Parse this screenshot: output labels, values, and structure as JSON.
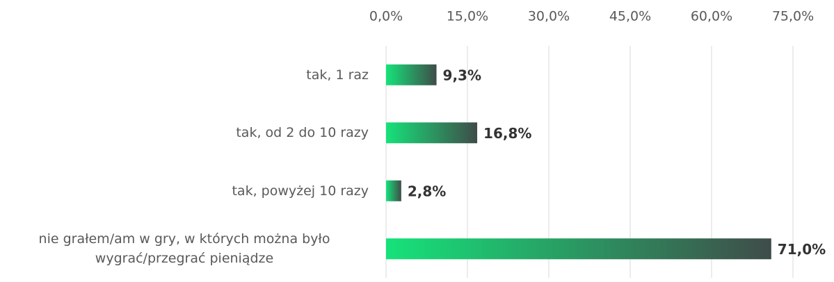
{
  "chart_data": {
    "type": "hbar",
    "categories": [
      "tak, 1 raz",
      "tak, od 2 do 10 razy",
      "tak, powyżej 10 razy",
      "nie grałem/am w gry, w których można było wygrać/przegrać pieniądze"
    ],
    "values": [
      9.3,
      16.8,
      2.8,
      71.0
    ],
    "value_labels": [
      "9,3%",
      "16,8%",
      "2,8%",
      "71,0%"
    ],
    "color": [
      "#16e27a",
      "#3f4c49"
    ],
    "xlim": [
      0,
      75
    ],
    "xticks": [
      {
        "value": 0,
        "label": "0,0%"
      },
      {
        "value": 15,
        "label": "15,0%"
      },
      {
        "value": 30,
        "label": "30,0%"
      },
      {
        "value": 45,
        "label": "45,0%"
      },
      {
        "value": 60,
        "label": "60,0%"
      },
      {
        "value": 75,
        "label": "75,0%"
      }
    ],
    "grid": true
  }
}
